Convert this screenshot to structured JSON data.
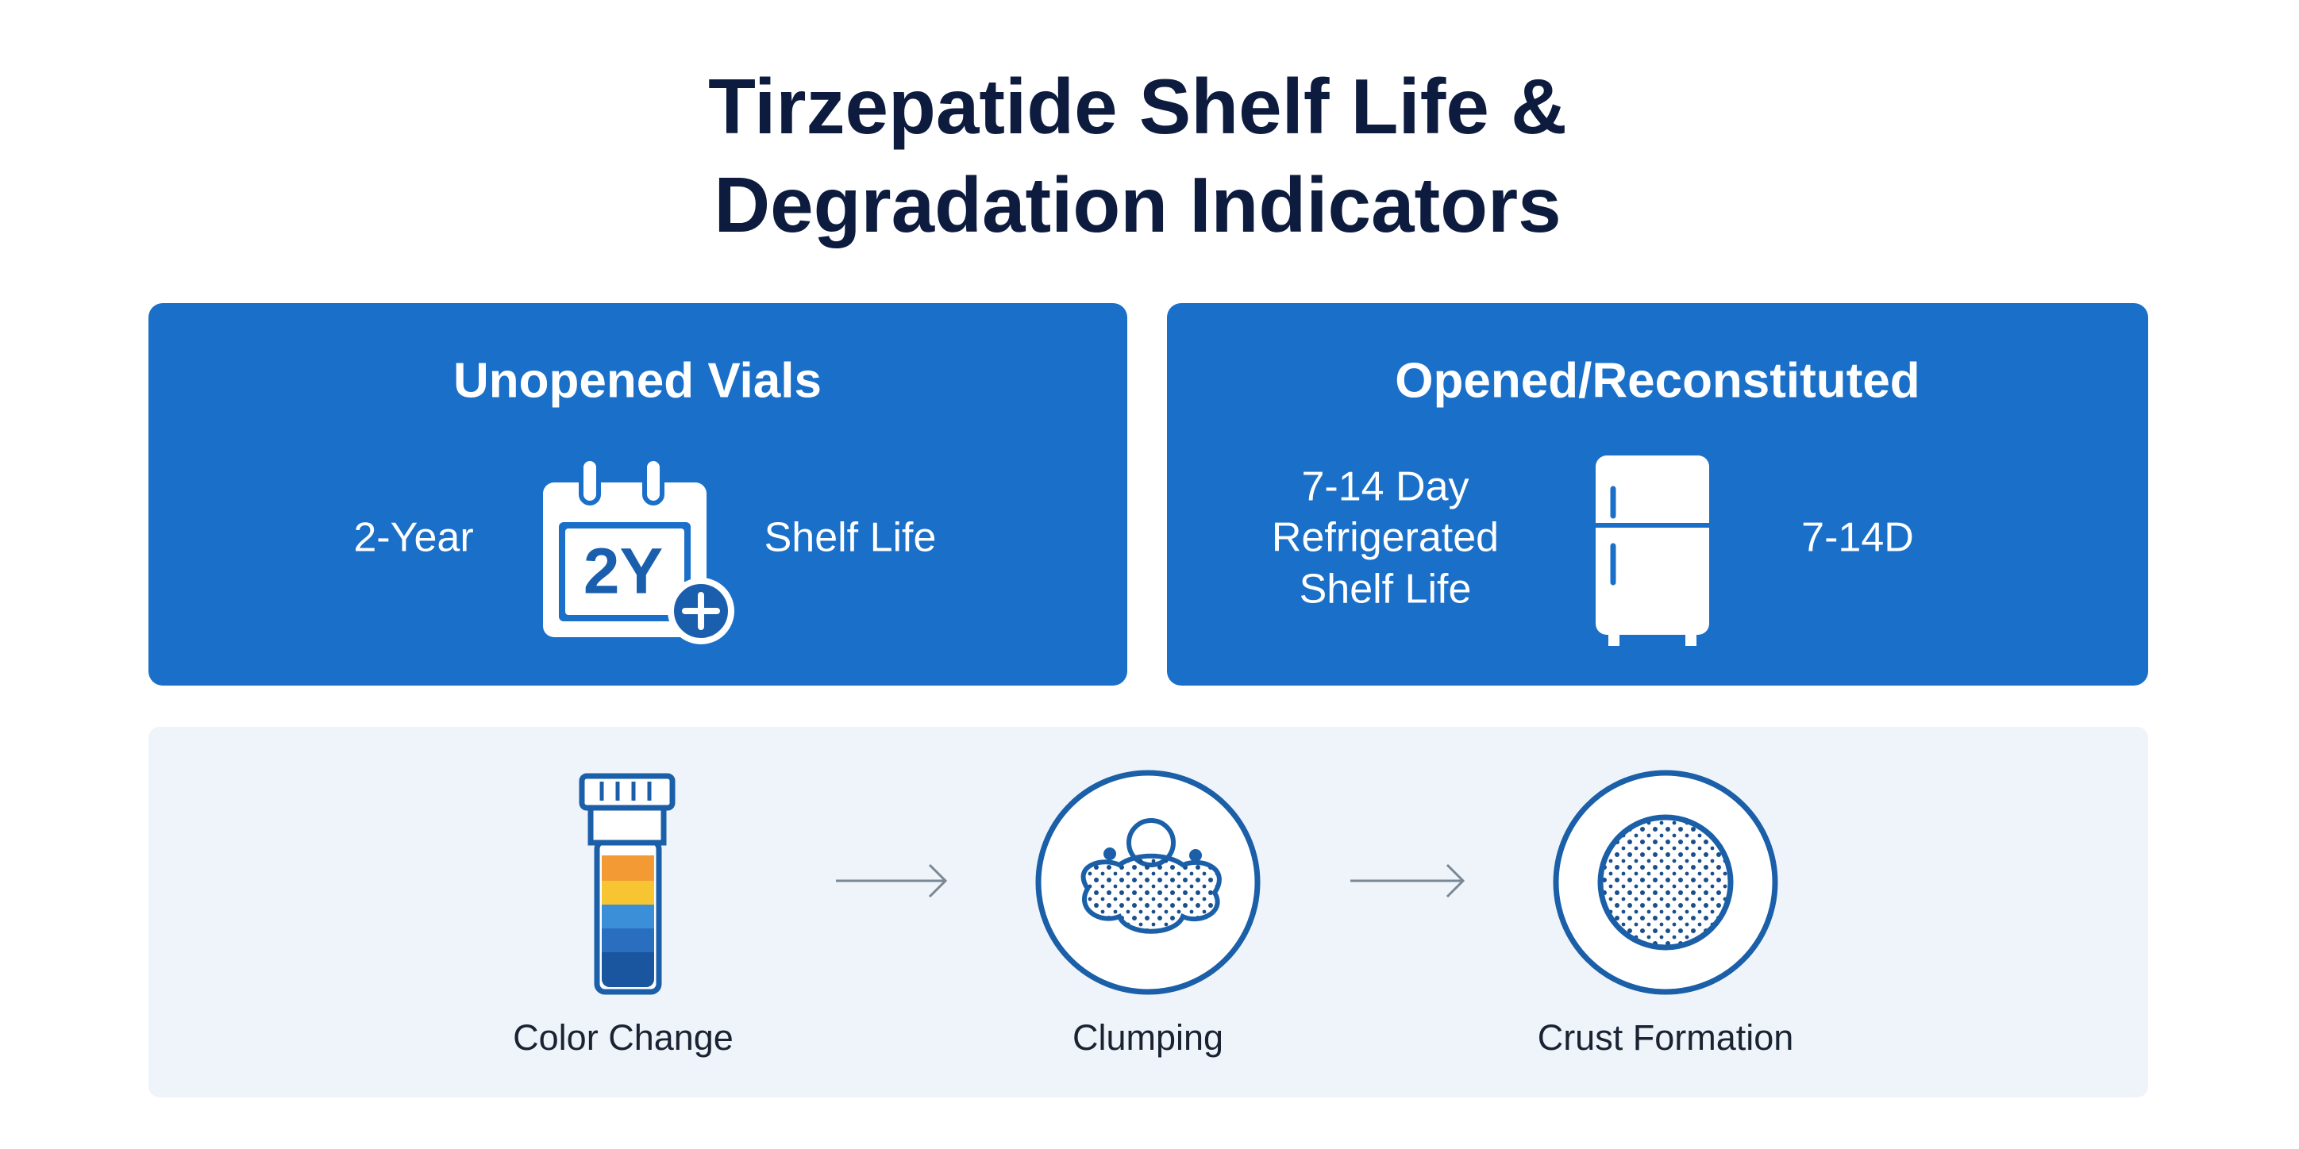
{
  "title": [
    "Tirzepatide Shelf Life &",
    "Degradation Indicators"
  ],
  "cards": [
    {
      "heading": "Unopened Vials",
      "left": [
        "2-Year"
      ],
      "icon_text": "2Y",
      "right": "Shelf Life"
    },
    {
      "heading": "Opened/Reconstituted",
      "left": [
        "7-14 Day",
        "Refrigerated",
        "Shelf Life"
      ],
      "right": "7-14D"
    }
  ],
  "indicators": [
    {
      "label": "Color Change"
    },
    {
      "label": "Clumping"
    },
    {
      "label": "Crust Formation"
    }
  ]
}
